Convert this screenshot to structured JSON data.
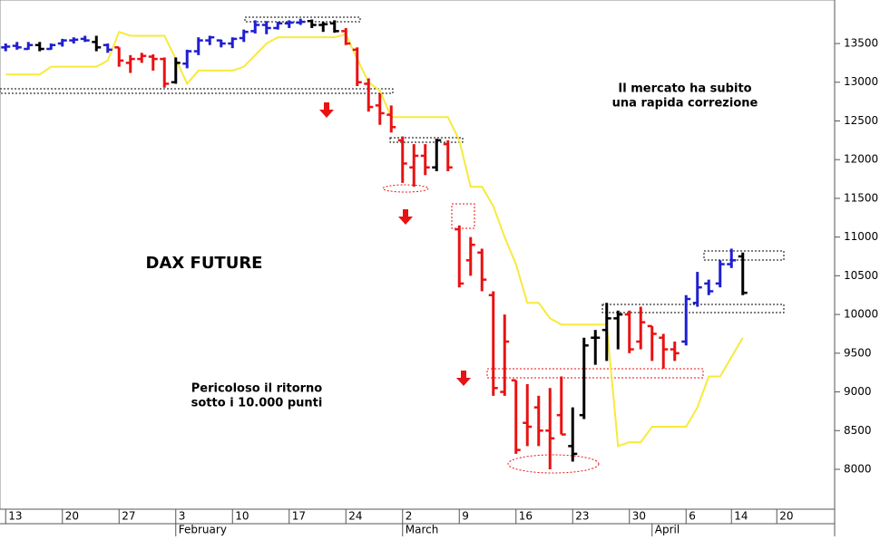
{
  "chart_data": {
    "type": "ohlc",
    "title": "DAX FUTURE",
    "annotations": [
      "Il mercato ha subito",
      "una rapida correzione",
      "Pericoloso il ritorno",
      "sotto i 10.000 punti"
    ],
    "open": [
      13450,
      13470,
      13430,
      13480,
      13430,
      13500,
      13540,
      13560,
      13520,
      13480,
      13450,
      13250,
      13300,
      13330,
      13300,
      13000,
      13240,
      13400,
      13540,
      13540,
      13500,
      13570,
      13660,
      13740,
      13700,
      13760,
      13770,
      13790,
      13740,
      13760,
      13660,
      13420,
      12980,
      12700,
      12580,
      12250,
      11900,
      12050,
      11900,
      12200,
      11100,
      10700,
      10800,
      10250,
      9000,
      9150,
      8600,
      8800,
      8500,
      8700,
      8300,
      8700,
      9700,
      9800,
      9950,
      10000,
      9650,
      9850,
      9700,
      9550,
      9650,
      10150,
      10400,
      10400,
      10650,
      10750
    ],
    "high": [
      13500,
      13520,
      13520,
      13520,
      13500,
      13560,
      13580,
      13600,
      13600,
      13500,
      13450,
      13350,
      13380,
      13360,
      13320,
      13320,
      13420,
      13580,
      13600,
      13550,
      13580,
      13680,
      13800,
      13790,
      13780,
      13800,
      13820,
      13810,
      13780,
      13800,
      13700,
      13450,
      13050,
      12850,
      12700,
      12300,
      12200,
      12200,
      12270,
      12250,
      11150,
      11000,
      10850,
      10300,
      10000,
      9150,
      9100,
      8950,
      9050,
      9200,
      8800,
      9700,
      9800,
      10150,
      10050,
      10050,
      10100,
      9850,
      9750,
      9650,
      10250,
      10550,
      10450,
      10700,
      10850,
      10800
    ],
    "low": [
      13400,
      13420,
      13420,
      13400,
      13420,
      13460,
      13500,
      13520,
      13400,
      13380,
      13200,
      13120,
      13250,
      13150,
      12930,
      12980,
      13180,
      13350,
      13480,
      13450,
      13440,
      13520,
      13630,
      13620,
      13680,
      13700,
      13740,
      13700,
      13650,
      13640,
      13480,
      12950,
      12620,
      12450,
      12350,
      11700,
      11650,
      11800,
      11850,
      11850,
      10350,
      10500,
      10300,
      8950,
      8950,
      8200,
      8300,
      8300,
      8000,
      8450,
      8100,
      8650,
      9350,
      9400,
      9550,
      9500,
      9550,
      9400,
      9300,
      9400,
      9600,
      10100,
      10250,
      10350,
      10600,
      10250
    ],
    "close": [
      13460,
      13450,
      13480,
      13430,
      13480,
      13540,
      13550,
      13540,
      13450,
      13420,
      13280,
      13300,
      13340,
      13300,
      12980,
      13250,
      13400,
      13540,
      13580,
      13500,
      13560,
      13650,
      13740,
      13700,
      13760,
      13770,
      13780,
      13740,
      13750,
      13660,
      13500,
      13000,
      12680,
      12600,
      12420,
      11950,
      12050,
      11900,
      12250,
      11900,
      10400,
      10900,
      10450,
      9050,
      9650,
      8250,
      8550,
      8500,
      8400,
      8450,
      8200,
      9600,
      9700,
      9950,
      10000,
      9550,
      9900,
      9750,
      9550,
      9500,
      10200,
      10350,
      10300,
      10650,
      10700,
      10280
    ],
    "colors": [
      "#1f1fd0",
      "#1f1fd0",
      "#1f1fd0",
      "#000000",
      "#1f1fd0",
      "#1f1fd0",
      "#1f1fd0",
      "#1f1fd0",
      "#000000",
      "#1f1fd0",
      "#e81212",
      "#e81212",
      "#e81212",
      "#e81212",
      "#e81212",
      "#000000",
      "#1f1fd0",
      "#1f1fd0",
      "#1f1fd0",
      "#1f1fd0",
      "#1f1fd0",
      "#1f1fd0",
      "#1f1fd0",
      "#1f1fd0",
      "#1f1fd0",
      "#1f1fd0",
      "#1f1fd0",
      "#000000",
      "#000000",
      "#000000",
      "#e81212",
      "#e81212",
      "#e81212",
      "#e81212",
      "#e81212",
      "#e81212",
      "#e81212",
      "#e81212",
      "#000000",
      "#e81212",
      "#e81212",
      "#e81212",
      "#e81212",
      "#e81212",
      "#e81212",
      "#e81212",
      "#e81212",
      "#e81212",
      "#e81212",
      "#e81212",
      "#000000",
      "#000000",
      "#000000",
      "#000000",
      "#000000",
      "#e81212",
      "#e81212",
      "#e81212",
      "#e81212",
      "#e81212",
      "#1f1fd0",
      "#1f1fd0",
      "#1f1fd0",
      "#1f1fd0",
      "#1f1fd0",
      "#000000"
    ],
    "moving_average": {
      "color": "#f7ea3c",
      "values": [
        13100,
        13100,
        13100,
        13100,
        13200,
        13200,
        13200,
        13200,
        13200,
        13280,
        13650,
        13600,
        13600,
        13600,
        13600,
        13300,
        12980,
        13150,
        13150,
        13150,
        13150,
        13200,
        13350,
        13500,
        13580,
        13580,
        13580,
        13580,
        13580,
        13580,
        13620,
        13300,
        13000,
        12890,
        12550,
        12550,
        12550,
        12550,
        12550,
        12550,
        12250,
        11650,
        11650,
        11400,
        11000,
        10650,
        10150,
        10150,
        9950,
        9870,
        9870,
        9870,
        9870,
        9870,
        8300,
        8350,
        8350,
        8550,
        8550,
        8550,
        8550,
        8800,
        9200,
        9200,
        9450,
        9700
      ]
    },
    "xlim": [
      -0.5,
      73.1
    ],
    "xticks": [
      {
        "value": 0,
        "label": "13"
      },
      {
        "value": 5,
        "label": "20"
      },
      {
        "value": 10,
        "label": "27"
      },
      {
        "value": 15,
        "label": "3"
      },
      {
        "value": 20,
        "label": "10"
      },
      {
        "value": 25,
        "label": "17"
      },
      {
        "value": 30,
        "label": "24"
      },
      {
        "value": 35,
        "label": "2"
      },
      {
        "value": 40,
        "label": "9"
      },
      {
        "value": 45,
        "label": "16"
      },
      {
        "value": 50,
        "label": "23"
      },
      {
        "value": 55,
        "label": "30"
      },
      {
        "value": 60,
        "label": "6"
      },
      {
        "value": 64,
        "label": "14"
      },
      {
        "value": 68,
        "label": "20"
      }
    ],
    "month_labels": [
      {
        "value": 15,
        "label": "February"
      },
      {
        "value": 35,
        "label": "March"
      },
      {
        "value": 57,
        "label": "April"
      }
    ],
    "ylim": [
      7485,
      14062
    ],
    "yticks": [
      8000,
      8500,
      9000,
      9500,
      10000,
      10500,
      11000,
      11500,
      12000,
      12500,
      13000,
      13500
    ]
  }
}
